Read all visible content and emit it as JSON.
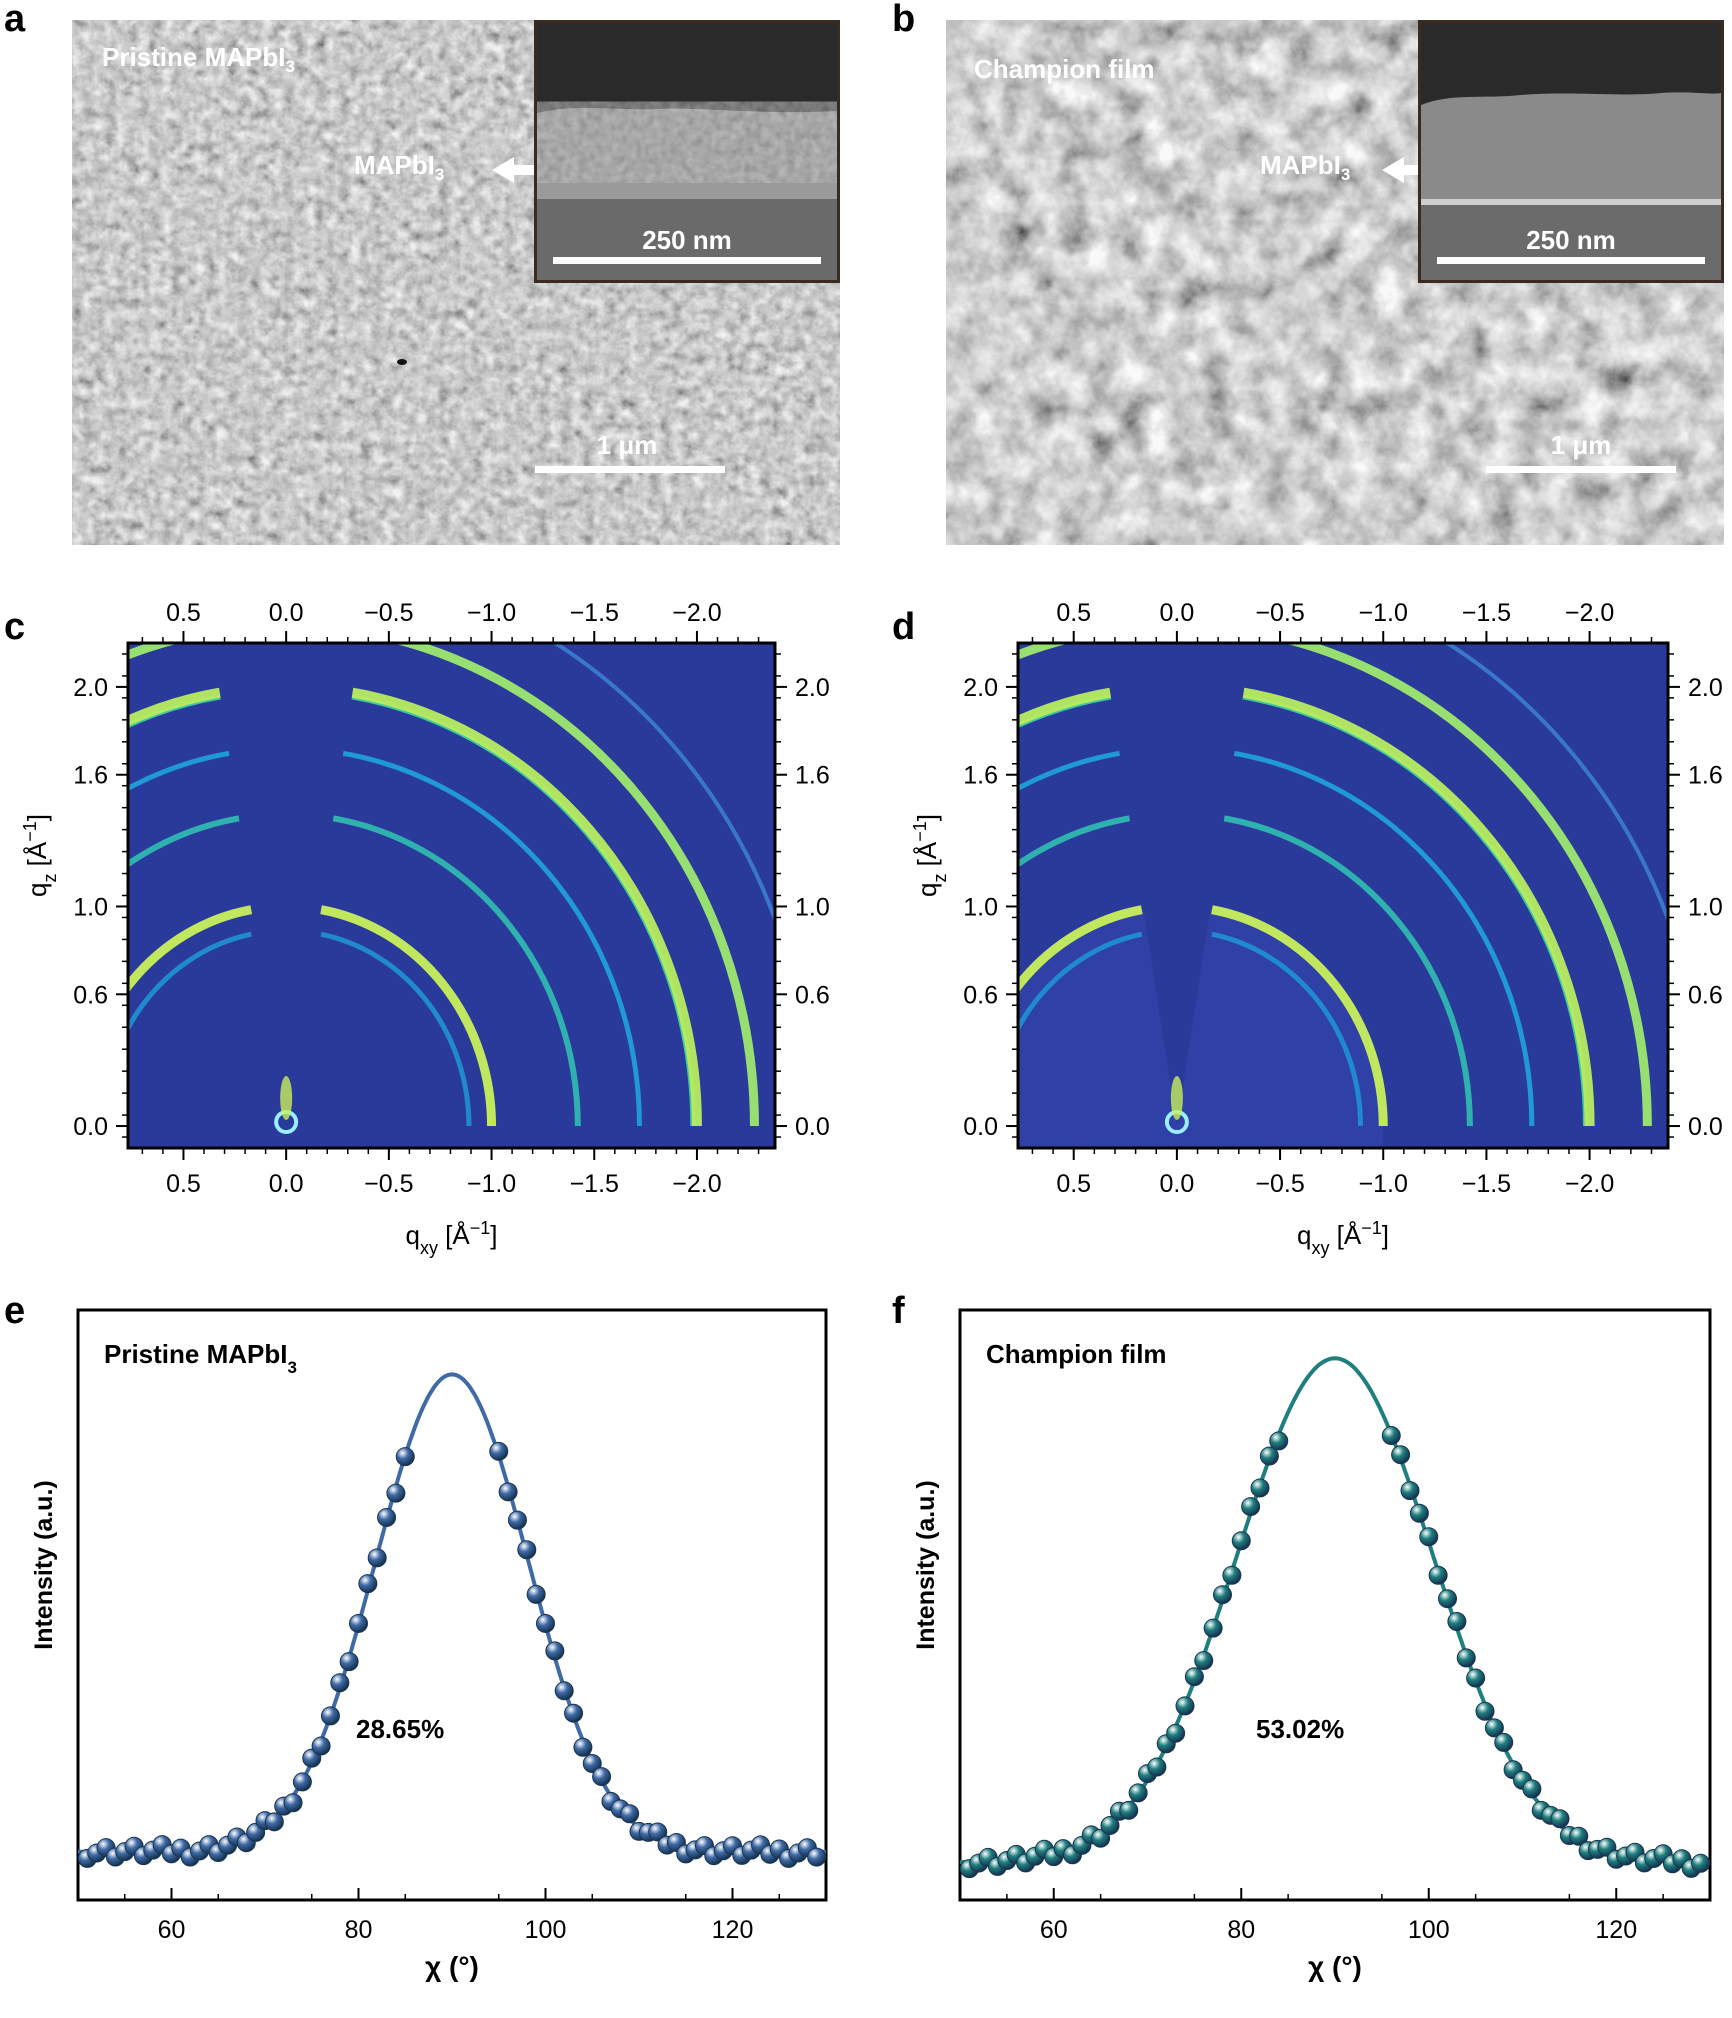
{
  "figure": {
    "panels": {
      "a": {
        "letter": "a",
        "title": "Pristine MAPbI",
        "title_sub": "3",
        "inset_label": "MAPbI",
        "inset_label_sub": "3",
        "inset_scale": "250 nm",
        "scale": "1 μm"
      },
      "b": {
        "letter": "b",
        "title": "Champion film",
        "inset_label": "MAPbI",
        "inset_label_sub": "3",
        "inset_scale": "250 nm",
        "scale": "1 μm"
      },
      "c": {
        "letter": "c"
      },
      "d": {
        "letter": "d"
      },
      "e": {
        "letter": "e",
        "title": "Pristine MAPbI",
        "title_sub": "3",
        "annotation": "28.65%"
      },
      "f": {
        "letter": "f",
        "title": "Champion film",
        "annotation": "53.02%"
      }
    },
    "colors": {
      "e_series": "#3f6aa6",
      "f_series": "#1f7f7f",
      "giwaxs_bg": "#2a3a9a"
    }
  },
  "chart_data": [
    {
      "id": "c",
      "type": "heatmap",
      "title": "",
      "xlabel": "q",
      "xlabel_sub": "xy",
      "xlabel_unit": " [Å",
      "xlabel_sup": "−1",
      "xlabel_end": "]",
      "ylabel": "q",
      "ylabel_sub": "z",
      "ylabel_unit": " [Å",
      "ylabel_sup": "−1",
      "ylabel_end": "]",
      "xlim": [
        0.77,
        -2.38
      ],
      "ylim": [
        -0.1,
        2.2
      ],
      "xticks": [
        {
          "v": 0.5,
          "t": "0.5"
        },
        {
          "v": 0.0,
          "t": "0.0"
        },
        {
          "v": -0.5,
          "t": "−0.5"
        },
        {
          "v": -1.0,
          "t": "−1.0"
        },
        {
          "v": -1.5,
          "t": "−1.5"
        },
        {
          "v": -2.0,
          "t": "−2.0"
        }
      ],
      "yticks": [
        {
          "v": 0.0,
          "t": "0.0"
        },
        {
          "v": 0.6,
          "t": "0.6"
        },
        {
          "v": 1.0,
          "t": "1.0"
        },
        {
          "v": 1.6,
          "t": "1.6"
        },
        {
          "v": 2.0,
          "t": "2.0"
        }
      ],
      "rings_q": [
        0.89,
        1.0,
        1.42,
        1.72,
        1.98,
        2.0,
        2.28,
        2.56
      ]
    },
    {
      "id": "d",
      "type": "heatmap",
      "title": "",
      "xlabel": "q",
      "xlabel_sub": "xy",
      "xlabel_unit": " [Å",
      "xlabel_sup": "−1",
      "xlabel_end": "]",
      "ylabel": "q",
      "ylabel_sub": "z",
      "ylabel_unit": " [Å",
      "ylabel_sup": "−1",
      "ylabel_end": "]",
      "xlim": [
        0.77,
        -2.38
      ],
      "ylim": [
        -0.1,
        2.2
      ],
      "xticks": [
        {
          "v": 0.5,
          "t": "0.5"
        },
        {
          "v": 0.0,
          "t": "0.0"
        },
        {
          "v": -0.5,
          "t": "−0.5"
        },
        {
          "v": -1.0,
          "t": "−1.0"
        },
        {
          "v": -1.5,
          "t": "−1.5"
        },
        {
          "v": -2.0,
          "t": "−2.0"
        }
      ],
      "yticks": [
        {
          "v": 0.0,
          "t": "0.0"
        },
        {
          "v": 0.6,
          "t": "0.6"
        },
        {
          "v": 1.0,
          "t": "1.0"
        },
        {
          "v": 1.6,
          "t": "1.6"
        },
        {
          "v": 2.0,
          "t": "2.0"
        }
      ],
      "rings_q": [
        0.89,
        1.0,
        1.42,
        1.72,
        1.98,
        2.0,
        2.28,
        2.56
      ]
    },
    {
      "id": "e",
      "type": "scatter",
      "title": "Pristine MAPbI3",
      "xlabel": "χ (°)",
      "ylabel": "Intensity (a.u.)",
      "xlim": [
        50,
        130
      ],
      "ylim": [
        0,
        1.1
      ],
      "xticks": [
        60,
        80,
        100,
        120
      ],
      "fit": {
        "baseline": 0.09,
        "amplitude": 0.89,
        "center": 90,
        "sigma": 8.2
      },
      "points_x": [
        51,
        52,
        53,
        54,
        55,
        56,
        57,
        58,
        59,
        60,
        61,
        62,
        63,
        64,
        65,
        66,
        67,
        68,
        69,
        70,
        71,
        72,
        73,
        74,
        75,
        76,
        77,
        78,
        79,
        80,
        81,
        82,
        83,
        84,
        85,
        95,
        96,
        97,
        98,
        99,
        100,
        101,
        102,
        103,
        104,
        105,
        106,
        107,
        108,
        109,
        110,
        111,
        112,
        113,
        114,
        115,
        116,
        117,
        118,
        119,
        120,
        121,
        122,
        123,
        124,
        125,
        126,
        127,
        128,
        129
      ]
    },
    {
      "id": "f",
      "type": "scatter",
      "title": "Champion film",
      "xlabel": "χ (°)",
      "ylabel": "Intensity (a.u.)",
      "xlim": [
        50,
        130
      ],
      "ylim": [
        0,
        1.1
      ],
      "xticks": [
        60,
        80,
        100,
        120
      ],
      "fit": {
        "baseline": 0.07,
        "amplitude": 0.94,
        "center": 90,
        "sigma": 10.5
      },
      "points_x": [
        51,
        52,
        53,
        54,
        55,
        56,
        57,
        58,
        59,
        60,
        61,
        62,
        63,
        64,
        65,
        66,
        67,
        68,
        69,
        70,
        71,
        72,
        73,
        74,
        75,
        76,
        77,
        78,
        79,
        80,
        81,
        82,
        83,
        84,
        96,
        97,
        98,
        99,
        100,
        101,
        102,
        103,
        104,
        105,
        106,
        107,
        108,
        109,
        110,
        111,
        112,
        113,
        114,
        115,
        116,
        117,
        118,
        119,
        120,
        121,
        122,
        123,
        124,
        125,
        126,
        127,
        128,
        129
      ]
    }
  ]
}
